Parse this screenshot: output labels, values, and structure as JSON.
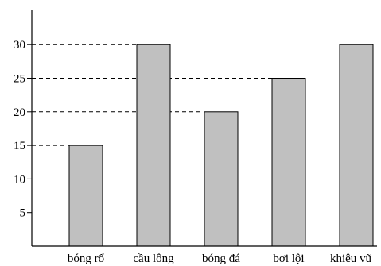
{
  "chart_data": {
    "type": "bar",
    "categories": [
      "bóng rổ",
      "cầu lông",
      "bóng đá",
      "bơi lội",
      "khiêu vũ"
    ],
    "values": [
      15,
      30,
      20,
      25,
      30
    ],
    "yticks": [
      5,
      10,
      15,
      20,
      25,
      30
    ],
    "ylim": [
      0,
      35
    ],
    "reference_lines": [
      15,
      20,
      25,
      30
    ],
    "bar_color": "#c0c0c0",
    "bar_stroke": "#000000",
    "grid": false
  }
}
